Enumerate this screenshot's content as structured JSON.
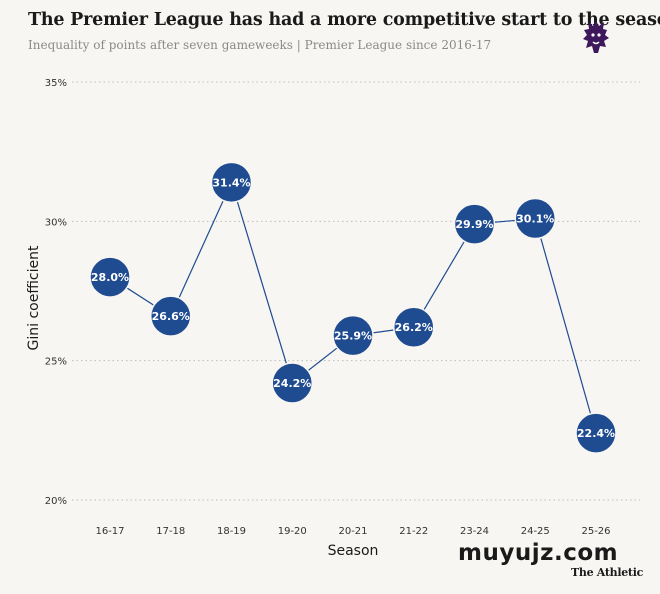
{
  "header": {
    "title": "The Premier League has had a more competitive start to the season",
    "subtitle": "Inequality of points after seven gameweeks | Premier League since 2016-17"
  },
  "footer": {
    "watermark": "muyujz.com",
    "brand": "The Athletic"
  },
  "colors": {
    "point_fill": "#1f4b91",
    "line": "#1f4b91",
    "grid": "#bdbdbd",
    "logo": "#3d195b"
  },
  "chart_data": {
    "type": "line",
    "title": "The Premier League has had a more competitive start to the season",
    "subtitle": "Inequality of points after seven gameweeks | Premier League since 2016-17",
    "xlabel": "Season",
    "ylabel": "Gini coefficient",
    "categories": [
      "16-17",
      "17-18",
      "18-19",
      "19-20",
      "20-21",
      "21-22",
      "23-24",
      "24-25",
      "25-26"
    ],
    "values": [
      28.0,
      26.6,
      31.4,
      24.2,
      25.9,
      26.2,
      29.9,
      30.1,
      22.4
    ],
    "data_labels": [
      "28.0%",
      "26.6%",
      "31.4%",
      "24.2%",
      "25.9%",
      "26.2%",
      "29.9%",
      "30.1%",
      "22.4%"
    ],
    "yticks": [
      20,
      25,
      30,
      35
    ],
    "ytick_labels": [
      "20%",
      "25%",
      "30%",
      "35%"
    ],
    "ylim": [
      20,
      35
    ],
    "grid": "horizontal dotted",
    "legend": "none"
  }
}
